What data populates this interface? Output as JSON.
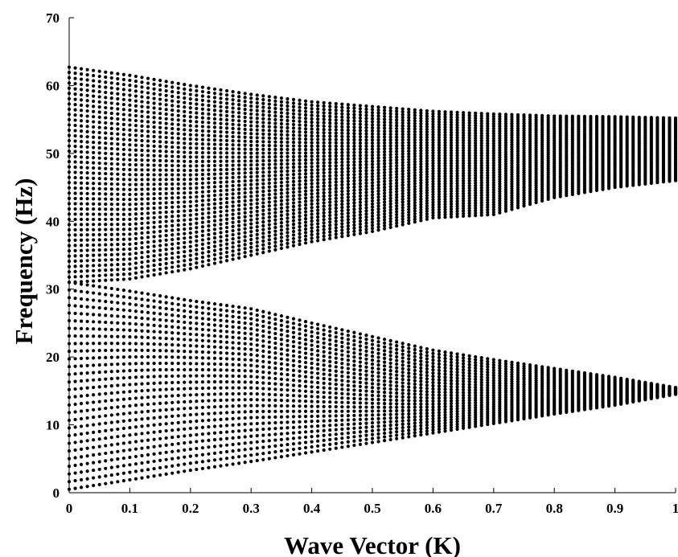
{
  "chart_data": {
    "type": "scatter",
    "title": "",
    "xlabel": "Wave Vector (K)",
    "ylabel": "Frequency (Hz)",
    "xlim": [
      0,
      1
    ],
    "ylim": [
      0,
      70
    ],
    "xticks": [
      0,
      0.1,
      0.2,
      0.3,
      0.4,
      0.5,
      0.6,
      0.7,
      0.8,
      0.9,
      1
    ],
    "xtick_labels": [
      "0",
      "0.1",
      "0.2",
      "0.3",
      "0.4",
      "0.5",
      "0.6",
      "0.7",
      "0.8",
      "0.9",
      "1"
    ],
    "yticks": [
      0,
      10,
      20,
      30,
      40,
      50,
      60,
      70
    ],
    "ytick_labels": [
      "0",
      "10",
      "20",
      "30",
      "40",
      "50",
      "60",
      "70"
    ],
    "grid": false,
    "marker_color": "#000000",
    "x_sample_count": 101,
    "series": [
      {
        "lower_branch_x": [
          0,
          0.1,
          0.2,
          0.3,
          0.4,
          0.5,
          0.6,
          0.7,
          0.8,
          0.9,
          1
        ],
        "lower_branch_start_y": [
          0.5,
          1.9,
          3.3,
          4.6,
          6.0,
          7.4,
          8.8,
          10.2,
          11.6,
          12.9,
          14.5
        ],
        "lower_branch_end_y": [
          31,
          29.7,
          28.3,
          27.1,
          25.0,
          23.0,
          21.0,
          19.6,
          18.3,
          17.0,
          15.5
        ],
        "lower_branch_mode_count": 28
      },
      {
        "upper_branch_x": [
          0,
          0.1,
          0.2,
          0.3,
          0.4,
          0.5,
          0.6,
          0.7,
          0.8,
          0.9,
          1
        ],
        "upper_branch_start_y": [
          31,
          31.5,
          33.0,
          35.0,
          37.0,
          38.5,
          40.5,
          41.0,
          43.5,
          45.0,
          46.0
        ],
        "upper_branch_end_y": [
          62.7,
          61.5,
          60.0,
          58.7,
          57.6,
          56.9,
          56.2,
          55.8,
          55.5,
          55.4,
          55.2
        ],
        "upper_branch_mode_count": 42
      }
    ]
  }
}
